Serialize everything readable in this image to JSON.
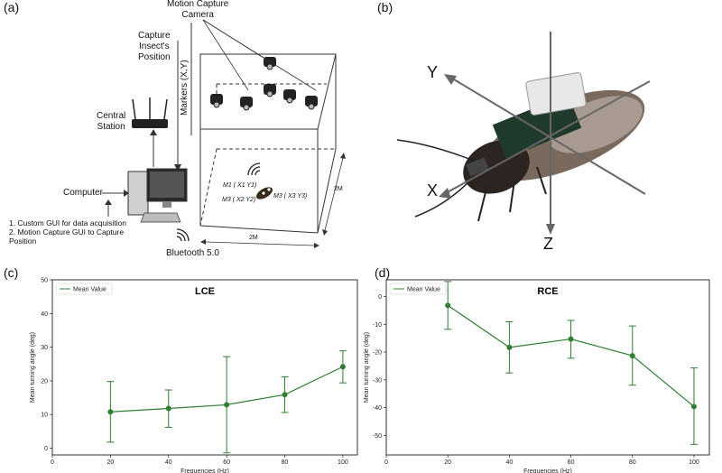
{
  "panels": {
    "a": "(a)",
    "b": "(b)",
    "c": "(c)",
    "d": "(d)"
  },
  "diagram_a": {
    "camera_label": "Motion Capture\nCamera",
    "capture_label": "Capture\nInsect's\nPosition",
    "markers_label": "Markers (X,Y)",
    "central_station": "Central\nStation",
    "computer": "Computer",
    "gui_list": "1. Custom GUI for data acquisition\n2. Motion Capture GUI to Capture\nPosition",
    "bluetooth": "Bluetooth 5.0",
    "m1": "M1 ( X1 Y1)",
    "m2": "M3 ( X2 Y2)",
    "m3": "M3 ( X3 Y3)",
    "dim_depth": "2M",
    "dim_width": "2M"
  },
  "diagram_b": {
    "axis_y": "Y",
    "axis_x": "X",
    "axis_z": "Z"
  },
  "chart_data": [
    {
      "type": "line",
      "title": "LCE",
      "legend": "Mean Value",
      "legend_position": "top-left",
      "xlabel": "Frequencies (Hz)",
      "ylabel": "Mean turning angle (deg)",
      "xlim": [
        0,
        105
      ],
      "ylim": [
        -2,
        50
      ],
      "xticks": [
        0,
        20,
        40,
        60,
        80,
        100
      ],
      "yticks": [
        0,
        10,
        20,
        30,
        40,
        50
      ],
      "x": [
        20,
        40,
        60,
        80,
        100
      ],
      "y": [
        10.8,
        11.8,
        12.9,
        15.9,
        24.2
      ],
      "err_low": [
        1.8,
        6.2,
        -1.4,
        10.6,
        19.4
      ],
      "err_high": [
        19.8,
        17.3,
        27.2,
        21.2,
        28.9
      ],
      "color": "#2e7d32"
    },
    {
      "type": "line",
      "title": "RCE",
      "legend": "Mean Value",
      "legend_position": "top-left",
      "xlabel": "Frequencies (Hz)",
      "ylabel": "Mean turning angle (deg)",
      "xlim": [
        0,
        105
      ],
      "ylim": [
        -57,
        6
      ],
      "xticks": [
        0,
        20,
        40,
        60,
        80,
        100
      ],
      "yticks": [
        0,
        -10,
        -20,
        -30,
        -40,
        -50
      ],
      "x": [
        20,
        40,
        60,
        80,
        100
      ],
      "y": [
        -3.2,
        -18.3,
        -15.3,
        -21.3,
        -39.6
      ],
      "err_low": [
        -11.8,
        -27.5,
        -22.2,
        -31.9,
        -53.2
      ],
      "err_high": [
        5.4,
        -9.1,
        -8.6,
        -10.6,
        -25.7
      ],
      "color": "#2e7d32"
    }
  ]
}
